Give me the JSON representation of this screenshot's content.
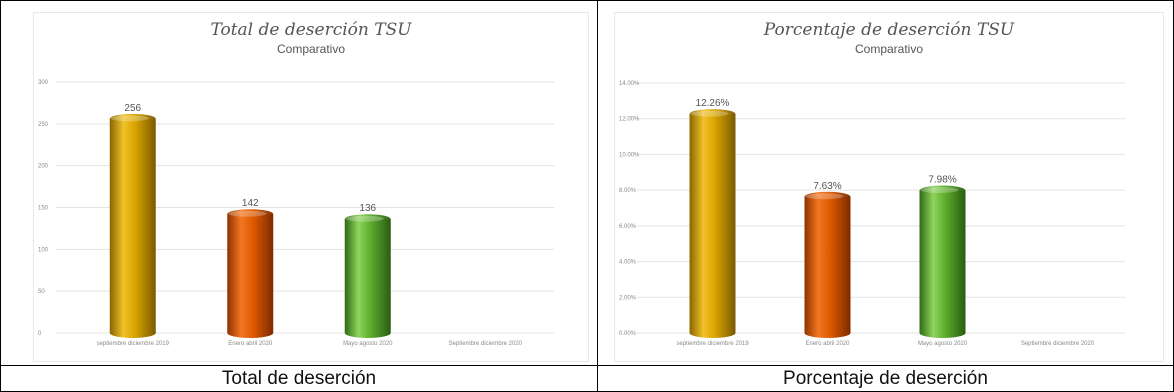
{
  "captions": {
    "left": "Total de deserción",
    "right": "Porcentaje de deserción"
  },
  "colors": {
    "gold": "#d4a000",
    "orange": "#e05a00",
    "green": "#5fae2e",
    "grid": "#e3e3e3"
  },
  "chart_data": [
    {
      "type": "bar",
      "title": "Total de deserción TSU",
      "subtitle": "Comparativo",
      "categories": [
        "septiembre diciembre 2019",
        "Enero abril 2020",
        "Mayo agosto 2020",
        "Septiembre diciembre 2020"
      ],
      "values": [
        256,
        142,
        136,
        null
      ],
      "data_labels": [
        "256",
        "142",
        "136",
        ""
      ],
      "yticks": [
        "0",
        "50",
        "100",
        "150",
        "200",
        "250",
        "300"
      ],
      "ylim": [
        0,
        300
      ],
      "grid": true,
      "legend": "none"
    },
    {
      "type": "bar",
      "title": "Porcentaje de deserción TSU",
      "subtitle": "Comparativo",
      "categories": [
        "septiembre diciembre 2019",
        "Enero abril 2020",
        "Mayo agosto 2020",
        "Septiembre diciembre 2020"
      ],
      "values": [
        12.26,
        7.63,
        7.98,
        null
      ],
      "data_labels": [
        "12.26%",
        "7.63%",
        "7.98%",
        ""
      ],
      "yticks": [
        "0.00%",
        "2.00%",
        "4.00%",
        "6.00%",
        "8.00%",
        "10.00%",
        "12.00%",
        "14.00%"
      ],
      "ylim": [
        0,
        14
      ],
      "grid": true,
      "legend": "none"
    }
  ]
}
